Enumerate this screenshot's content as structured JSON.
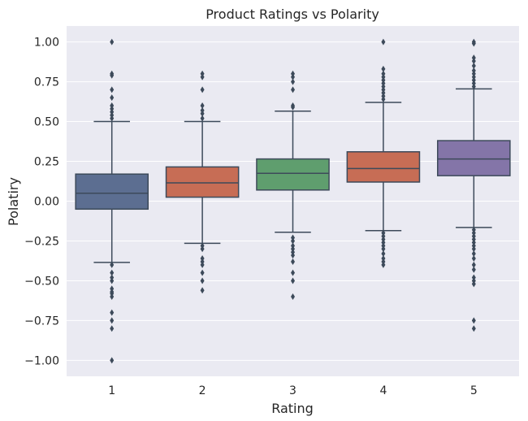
{
  "chart_data": {
    "type": "box",
    "title": "Product Ratings vs Polarity",
    "xlabel": "Rating",
    "ylabel": "Polatiry",
    "ylim": [
      -1.1,
      1.1
    ],
    "yticks": [
      "1.00",
      "0.75",
      "0.50",
      "0.25",
      "0.00",
      "−0.25",
      "−0.50",
      "−0.75",
      "−1.00"
    ],
    "ytick_values": [
      1.0,
      0.75,
      0.5,
      0.25,
      0.0,
      -0.25,
      -0.5,
      -0.75,
      -1.0
    ],
    "grid": true,
    "background": "#eaeaf2",
    "categories": [
      "1",
      "2",
      "3",
      "4",
      "5"
    ],
    "boxes": [
      {
        "category": "1",
        "color": "#5c6e91",
        "whisker_low": -0.385,
        "q1": -0.05,
        "median": 0.05,
        "q3": 0.17,
        "whisker_high": 0.5,
        "outliers": [
          1.0,
          0.8,
          0.79,
          0.7,
          0.65,
          0.6,
          0.58,
          0.56,
          0.54,
          0.52,
          -0.4,
          -0.45,
          -0.48,
          -0.5,
          -0.55,
          -0.57,
          -0.58,
          -0.6,
          -0.7,
          -0.75,
          -0.8,
          -1.0
        ]
      },
      {
        "category": "2",
        "color": "#c76d55",
        "whisker_low": -0.265,
        "q1": 0.025,
        "median": 0.115,
        "q3": 0.215,
        "whisker_high": 0.5,
        "outliers": [
          0.8,
          0.78,
          0.7,
          0.6,
          0.57,
          0.55,
          0.52,
          -0.28,
          -0.3,
          -0.36,
          -0.38,
          -0.4,
          -0.45,
          -0.5,
          -0.56
        ]
      },
      {
        "category": "3",
        "color": "#5f9e6e",
        "whisker_low": -0.195,
        "q1": 0.07,
        "median": 0.175,
        "q3": 0.265,
        "whisker_high": 0.565,
        "outliers": [
          0.8,
          0.78,
          0.75,
          0.7,
          0.6,
          0.59,
          -0.23,
          -0.25,
          -0.28,
          -0.3,
          -0.32,
          -0.34,
          -0.38,
          -0.45,
          -0.5,
          -0.6
        ]
      },
      {
        "category": "4",
        "color": "#c76d55",
        "whisker_low": -0.185,
        "q1": 0.12,
        "median": 0.205,
        "q3": 0.31,
        "whisker_high": 0.62,
        "outliers": [
          1.0,
          0.83,
          0.8,
          0.78,
          0.76,
          0.74,
          0.72,
          0.7,
          0.68,
          0.66,
          0.64,
          -0.2,
          -0.22,
          -0.24,
          -0.26,
          -0.28,
          -0.3,
          -0.33,
          -0.36,
          -0.38,
          -0.4
        ]
      },
      {
        "category": "5",
        "color": "#8475a8",
        "whisker_low": -0.165,
        "q1": 0.16,
        "median": 0.265,
        "q3": 0.38,
        "whisker_high": 0.705,
        "outliers": [
          1.0,
          0.99,
          0.9,
          0.88,
          0.85,
          0.82,
          0.8,
          0.78,
          0.76,
          0.74,
          0.72,
          -0.18,
          -0.2,
          -0.22,
          -0.24,
          -0.26,
          -0.28,
          -0.3,
          -0.33,
          -0.36,
          -0.4,
          -0.43,
          -0.48,
          -0.5,
          -0.52,
          -0.75,
          -0.8
        ]
      }
    ]
  }
}
